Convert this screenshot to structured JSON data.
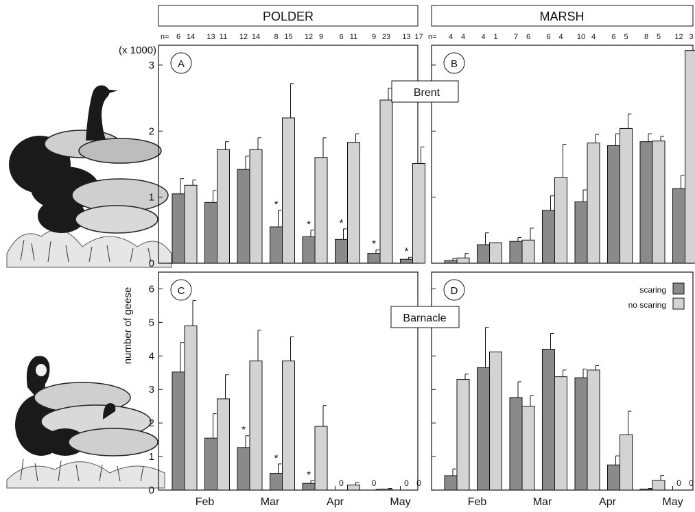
{
  "headers": {
    "polder": "POLDER",
    "marsh": "MARSH"
  },
  "ylabel": "number of geese",
  "y_multiplier": "(x 1000)",
  "n_prefix": "n=",
  "months": [
    "Feb",
    "Mar",
    "Apr",
    "May"
  ],
  "species": {
    "brent": "Brent",
    "barnacle": "Barnacle"
  },
  "legend": {
    "scaring": "scaring",
    "no_scaring": "no scaring"
  },
  "colors": {
    "scaring": "#8a8a8a",
    "no_scaring": "#d3d3d3",
    "axis": "#111111"
  },
  "n_values": {
    "polder": [
      "6",
      "14",
      "13",
      "11",
      "12",
      "14",
      "8",
      "15",
      "12",
      "9",
      "6",
      "11",
      "9",
      "23",
      "13",
      "17"
    ],
    "marsh": [
      "4",
      "4",
      "4",
      "1",
      "7",
      "6",
      "6",
      "4",
      "10",
      "4",
      "6",
      "5",
      "8",
      "5",
      "12",
      "3"
    ]
  },
  "chart_data": [
    {
      "type": "bar",
      "panel": "A",
      "site": "POLDER",
      "species": "Brent",
      "ylim": [
        0,
        3.3
      ],
      "yticks": [
        0,
        1,
        2,
        3
      ],
      "series": [
        {
          "name": "scaring",
          "values": [
            1.05,
            0.92,
            1.42,
            0.55,
            0.4,
            0.36,
            0.15,
            0.06
          ],
          "errors": [
            0.23,
            0.18,
            0.2,
            0.25,
            0.1,
            0.16,
            0.05,
            0.03
          ],
          "significant": [
            false,
            false,
            false,
            true,
            true,
            true,
            true,
            true
          ]
        },
        {
          "name": "no scaring",
          "values": [
            1.18,
            1.72,
            1.72,
            2.2,
            1.6,
            1.83,
            2.47,
            1.51
          ],
          "errors": [
            0.08,
            0.12,
            0.18,
            0.52,
            0.3,
            0.13,
            0.18,
            0.25
          ]
        }
      ]
    },
    {
      "type": "bar",
      "panel": "B",
      "site": "MARSH",
      "species": "Brent",
      "ylim": [
        0,
        3.3
      ],
      "yticks": [
        0,
        1,
        2,
        3
      ],
      "series": [
        {
          "name": "scaring",
          "values": [
            0.04,
            0.28,
            0.33,
            0.8,
            0.93,
            1.78,
            1.84,
            1.13
          ],
          "errors": [
            0.03,
            0.18,
            0.06,
            0.22,
            0.18,
            0.18,
            0.12,
            0.2
          ]
        },
        {
          "name": "no scaring",
          "values": [
            0.08,
            0.31,
            0.35,
            1.3,
            1.82,
            2.04,
            1.85,
            3.22
          ],
          "errors": [
            0.07,
            0.0,
            0.18,
            0.5,
            0.13,
            0.22,
            0.07,
            0.0
          ]
        }
      ]
    },
    {
      "type": "bar",
      "panel": "C",
      "site": "POLDER",
      "species": "Barnacle",
      "ylim": [
        0,
        6.5
      ],
      "yticks": [
        0,
        1,
        2,
        3,
        4,
        5,
        6
      ],
      "series": [
        {
          "name": "scaring",
          "values": [
            3.52,
            1.55,
            1.27,
            0.5,
            0.2,
            0.0,
            0.0,
            0.0
          ],
          "errors": [
            0.88,
            0.73,
            0.35,
            0.28,
            0.08,
            0.0,
            0.02,
            0.0
          ],
          "significant": [
            false,
            false,
            true,
            true,
            true,
            false,
            false,
            false
          ],
          "zero_labels": [
            "",
            "",
            "",
            "",
            "",
            "0",
            "0",
            "0"
          ]
        },
        {
          "name": "no scaring",
          "values": [
            4.9,
            2.72,
            3.85,
            3.85,
            1.9,
            0.15,
            0.03,
            0.0
          ],
          "errors": [
            0.75,
            0.72,
            0.92,
            0.72,
            0.62,
            0.08,
            0.02,
            0.0
          ],
          "zero_labels": [
            "",
            "",
            "",
            "",
            "",
            "",
            "",
            "0"
          ]
        }
      ]
    },
    {
      "type": "bar",
      "panel": "D",
      "site": "MARSH",
      "species": "Barnacle",
      "ylim": [
        0,
        6.5
      ],
      "yticks": [
        0,
        1,
        2,
        3,
        4,
        5,
        6
      ],
      "series": [
        {
          "name": "scaring",
          "values": [
            0.43,
            3.65,
            2.76,
            4.2,
            3.35,
            0.75,
            0.03,
            0.0
          ],
          "errors": [
            0.2,
            1.2,
            0.47,
            0.47,
            0.26,
            0.27,
            0.02,
            0.0
          ],
          "zero_labels": [
            "",
            "",
            "",
            "",
            "",
            "",
            "",
            "0"
          ]
        },
        {
          "name": "no scaring",
          "values": [
            3.3,
            4.12,
            2.5,
            3.38,
            3.58,
            1.65,
            0.29,
            0.0
          ],
          "errors": [
            0.16,
            0.0,
            0.31,
            0.2,
            0.13,
            0.7,
            0.15,
            0.0
          ],
          "zero_labels": [
            "",
            "",
            "",
            "",
            "",
            "",
            "",
            "0"
          ]
        }
      ]
    }
  ]
}
